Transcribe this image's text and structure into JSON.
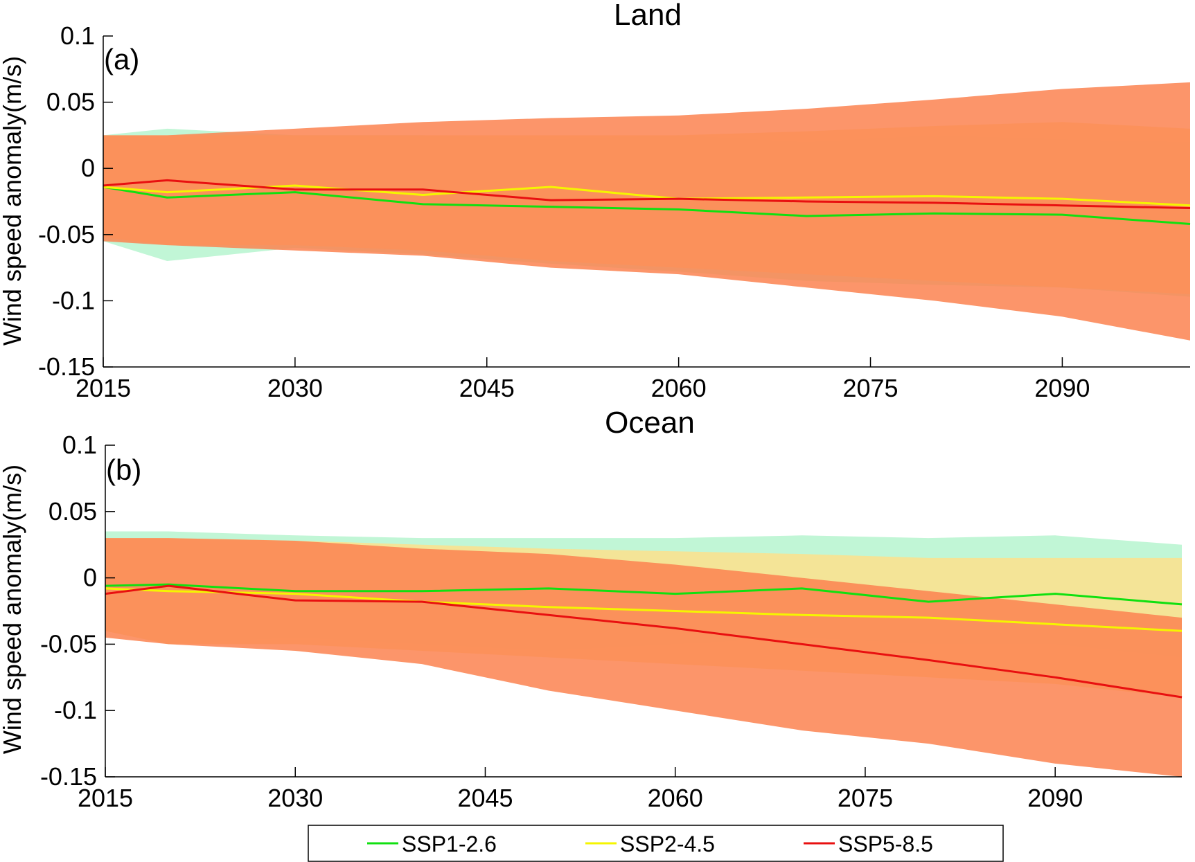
{
  "chart_data": [
    {
      "type": "area",
      "title": "Land",
      "panel_label": "(a)",
      "xlabel": "",
      "ylabel": "Wind speed anomaly(m/s)",
      "xlim": [
        2015,
        2100
      ],
      "ylim": [
        -0.15,
        0.1
      ],
      "xticks": [
        2015,
        2030,
        2045,
        2060,
        2075,
        2090
      ],
      "ytick_labels": [
        "0.1",
        "0.05",
        "0",
        "-0.05",
        "-0.1",
        "-0.15"
      ],
      "yticks": [
        0.1,
        0.05,
        0,
        -0.05,
        -0.1,
        -0.15
      ],
      "grid": false,
      "series": [
        {
          "name": "SSP1-2.6",
          "color": "#10e010",
          "band_color": "#b6f5cf",
          "x": [
            2015,
            2020,
            2030,
            2040,
            2050,
            2060,
            2070,
            2080,
            2090,
            2100
          ],
          "mean": [
            -0.014,
            -0.022,
            -0.018,
            -0.027,
            -0.029,
            -0.031,
            -0.036,
            -0.034,
            -0.035,
            -0.042
          ],
          "lower": [
            -0.055,
            -0.07,
            -0.06,
            -0.065,
            -0.072,
            -0.078,
            -0.085,
            -0.088,
            -0.09,
            -0.097
          ],
          "upper": [
            0.025,
            0.03,
            0.025,
            0.025,
            0.022,
            0.025,
            0.02,
            0.025,
            0.022,
            0.02
          ]
        },
        {
          "name": "SSP2-4.5",
          "color": "#f5f500",
          "band_color": "#fde08c",
          "x": [
            2015,
            2020,
            2030,
            2040,
            2050,
            2060,
            2070,
            2080,
            2090,
            2100
          ],
          "mean": [
            -0.014,
            -0.018,
            -0.013,
            -0.02,
            -0.014,
            -0.023,
            -0.022,
            -0.021,
            -0.023,
            -0.028
          ],
          "lower": [
            -0.052,
            -0.058,
            -0.058,
            -0.062,
            -0.07,
            -0.075,
            -0.08,
            -0.085,
            -0.09,
            -0.095
          ],
          "upper": [
            0.025,
            0.025,
            0.025,
            0.025,
            0.025,
            0.025,
            0.028,
            0.032,
            0.035,
            0.03
          ]
        },
        {
          "name": "SSP5-8.5",
          "color": "#e81010",
          "band_color": "#fb8350",
          "x": [
            2015,
            2020,
            2030,
            2040,
            2050,
            2060,
            2070,
            2080,
            2090,
            2100
          ],
          "mean": [
            -0.013,
            -0.009,
            -0.016,
            -0.016,
            -0.024,
            -0.023,
            -0.025,
            -0.026,
            -0.028,
            -0.03
          ],
          "lower": [
            -0.055,
            -0.058,
            -0.062,
            -0.066,
            -0.075,
            -0.08,
            -0.09,
            -0.1,
            -0.112,
            -0.13
          ],
          "upper": [
            0.025,
            0.025,
            0.03,
            0.035,
            0.038,
            0.04,
            0.045,
            0.052,
            0.06,
            0.065
          ]
        }
      ]
    },
    {
      "type": "area",
      "title": "Ocean",
      "panel_label": "(b)",
      "xlabel": "",
      "ylabel": "Wind speed anomaly(m/s)",
      "xlim": [
        2015,
        2100
      ],
      "ylim": [
        -0.15,
        0.1
      ],
      "xticks": [
        2015,
        2030,
        2045,
        2060,
        2075,
        2090
      ],
      "ytick_labels": [
        "0.1",
        "0.05",
        "0",
        "-0.05",
        "-0.1",
        "-0.15"
      ],
      "yticks": [
        0.1,
        0.05,
        0,
        -0.05,
        -0.1,
        -0.15
      ],
      "grid": false,
      "series": [
        {
          "name": "SSP1-2.6",
          "color": "#10e010",
          "band_color": "#b6f5cf",
          "x": [
            2015,
            2020,
            2030,
            2040,
            2050,
            2060,
            2070,
            2080,
            2090,
            2100
          ],
          "mean": [
            -0.006,
            -0.005,
            -0.01,
            -0.01,
            -0.008,
            -0.012,
            -0.008,
            -0.018,
            -0.012,
            -0.02
          ],
          "lower": [
            -0.04,
            -0.05,
            -0.045,
            -0.05,
            -0.055,
            -0.05,
            -0.045,
            -0.05,
            -0.05,
            -0.06
          ],
          "upper": [
            0.035,
            0.035,
            0.032,
            0.03,
            0.03,
            0.03,
            0.032,
            0.03,
            0.032,
            0.025
          ]
        },
        {
          "name": "SSP2-4.5",
          "color": "#f5f500",
          "band_color": "#fde08c",
          "x": [
            2015,
            2020,
            2030,
            2040,
            2050,
            2060,
            2070,
            2080,
            2090,
            2100
          ],
          "mean": [
            -0.008,
            -0.01,
            -0.012,
            -0.018,
            -0.022,
            -0.025,
            -0.028,
            -0.03,
            -0.035,
            -0.04
          ],
          "lower": [
            -0.04,
            -0.05,
            -0.05,
            -0.055,
            -0.06,
            -0.065,
            -0.07,
            -0.075,
            -0.08,
            -0.09
          ],
          "upper": [
            0.03,
            0.03,
            0.028,
            0.025,
            0.022,
            0.02,
            0.018,
            0.015,
            0.015,
            0.015
          ]
        },
        {
          "name": "SSP5-8.5",
          "color": "#e81010",
          "band_color": "#fb8350",
          "x": [
            2015,
            2020,
            2030,
            2040,
            2050,
            2060,
            2070,
            2080,
            2090,
            2100
          ],
          "mean": [
            -0.012,
            -0.006,
            -0.017,
            -0.018,
            -0.028,
            -0.038,
            -0.05,
            -0.062,
            -0.075,
            -0.09
          ],
          "lower": [
            -0.045,
            -0.05,
            -0.055,
            -0.065,
            -0.085,
            -0.1,
            -0.115,
            -0.125,
            -0.14,
            -0.15
          ],
          "upper": [
            0.03,
            0.03,
            0.028,
            0.022,
            0.018,
            0.01,
            0.0,
            -0.01,
            -0.02,
            -0.03
          ]
        }
      ]
    }
  ],
  "legend": {
    "placement": "bottom",
    "items": [
      {
        "label": "SSP1-2.6",
        "color": "#10e010"
      },
      {
        "label": "SSP2-4.5",
        "color": "#f5f500"
      },
      {
        "label": "SSP5-8.5",
        "color": "#e81010"
      }
    ]
  }
}
